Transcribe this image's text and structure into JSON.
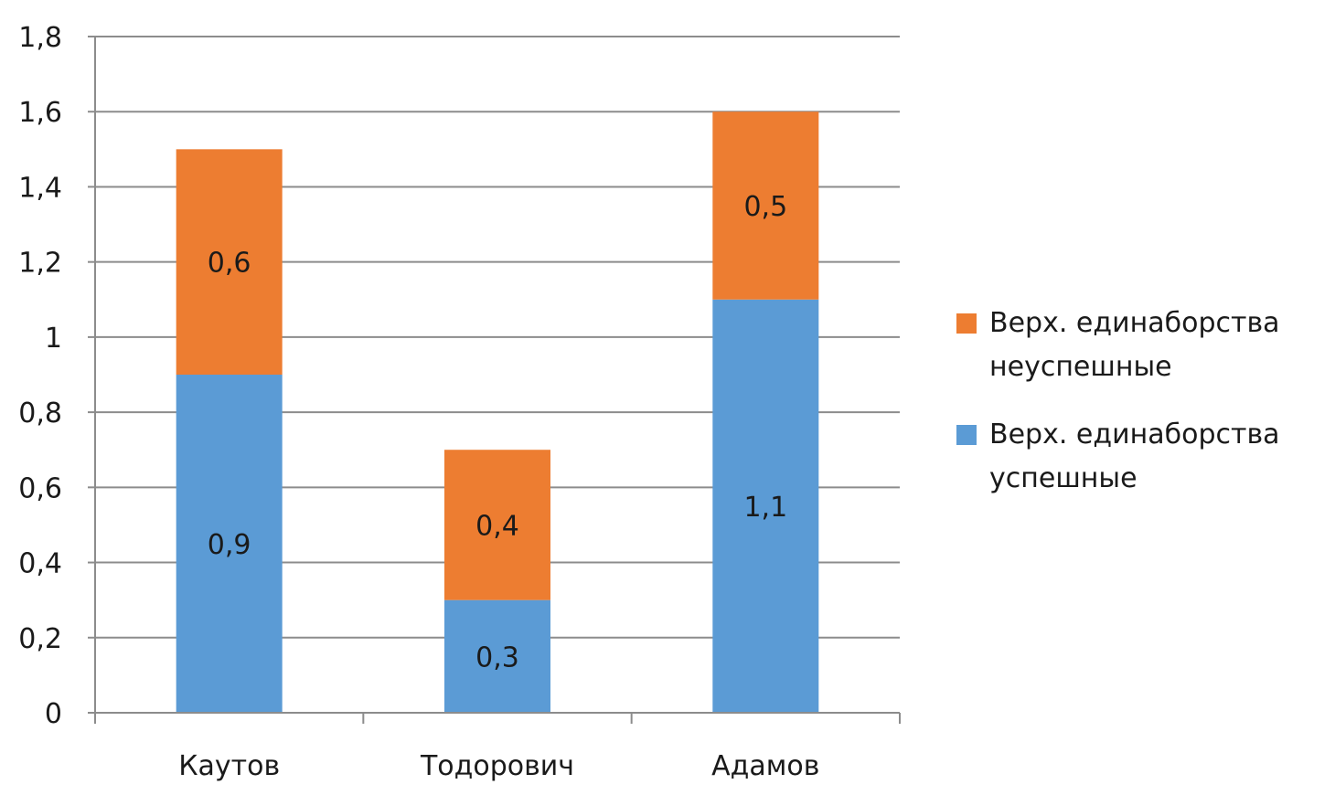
{
  "chart_data": {
    "type": "bar",
    "stacked": true,
    "categories": [
      "Каутов",
      "Тодорович",
      "Адамов"
    ],
    "series": [
      {
        "name": "Верх. единаборства успешные",
        "values": [
          0.9,
          0.3,
          1.1
        ],
        "labels": [
          "0,9",
          "0,3",
          "1,1"
        ],
        "color": "#5b9bd5"
      },
      {
        "name": "Верх. единаборства неуспешные",
        "values": [
          0.6,
          0.4,
          0.5
        ],
        "labels": [
          "0,6",
          "0,4",
          "0,5"
        ],
        "color": "#ed7d31"
      }
    ],
    "ylim": [
      0,
      1.8
    ],
    "yticks": [
      {
        "value": 0,
        "label": "0"
      },
      {
        "value": 0.2,
        "label": "0,2"
      },
      {
        "value": 0.4,
        "label": "0,4"
      },
      {
        "value": 0.6,
        "label": "0,6"
      },
      {
        "value": 0.8,
        "label": "0,8"
      },
      {
        "value": 1,
        "label": "1"
      },
      {
        "value": 1.2,
        "label": "1,2"
      },
      {
        "value": 1.4,
        "label": "1,4"
      },
      {
        "value": 1.6,
        "label": "1,6"
      },
      {
        "value": 1.8,
        "label": "1,8"
      }
    ],
    "grid": true,
    "legend_position": "right",
    "legend": [
      {
        "label": "Верх. единаборства неуспешные",
        "color": "#ed7d31"
      },
      {
        "label": "Верх. единаборства успешные",
        "color": "#5b9bd5"
      }
    ]
  }
}
